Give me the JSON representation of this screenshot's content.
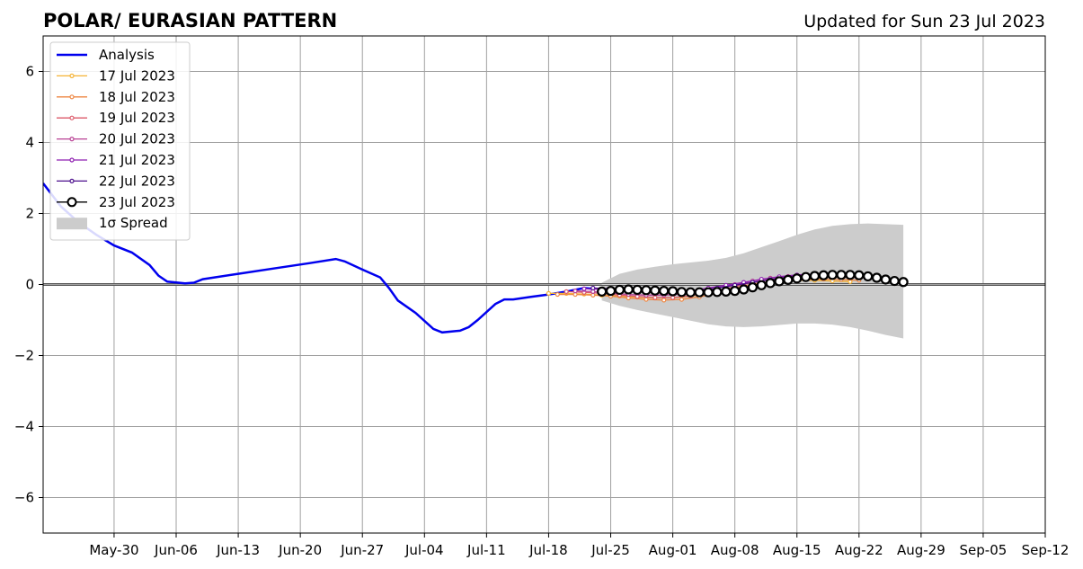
{
  "title": "POLAR/ EURASIAN  PATTERN",
  "subtitle": "Updated for Sun 23 Jul 2023",
  "chart_data": {
    "type": "line",
    "title": "POLAR/ EURASIAN  PATTERN",
    "subtitle": "Updated for Sun 23 Jul 2023",
    "xlabel": "",
    "ylabel": "",
    "xlim": [
      "2023-05-22",
      "2023-09-12"
    ],
    "ylim": [
      -7,
      7
    ],
    "x_ticks": [
      "May-30",
      "Jun-06",
      "Jun-13",
      "Jun-20",
      "Jun-27",
      "Jul-04",
      "Jul-11",
      "Jul-18",
      "Jul-25",
      "Aug-01",
      "Aug-08",
      "Aug-15",
      "Aug-22",
      "Aug-29",
      "Sep-05",
      "Sep-12"
    ],
    "x_tick_dates": [
      "2023-05-30",
      "2023-06-06",
      "2023-06-13",
      "2023-06-20",
      "2023-06-27",
      "2023-07-04",
      "2023-07-11",
      "2023-07-18",
      "2023-07-25",
      "2023-08-01",
      "2023-08-08",
      "2023-08-15",
      "2023-08-22",
      "2023-08-29",
      "2023-09-05",
      "2023-09-12"
    ],
    "y_ticks": [
      -6,
      -4,
      -2,
      0,
      2,
      4,
      6
    ],
    "y_tick_labels": [
      "−6",
      "−4",
      "−2",
      "0",
      "2",
      "4",
      "6"
    ],
    "grid": true,
    "legend_position": "top-left",
    "series": [
      {
        "name": "Analysis",
        "color": "#0000ee",
        "style": "line",
        "points": [
          [
            "2023-05-22",
            2.85
          ],
          [
            "2023-05-24",
            2.2
          ],
          [
            "2023-05-26",
            1.75
          ],
          [
            "2023-05-28",
            1.4
          ],
          [
            "2023-05-30",
            1.1
          ],
          [
            "2023-06-01",
            0.9
          ],
          [
            "2023-06-03",
            0.55
          ],
          [
            "2023-06-04",
            0.25
          ],
          [
            "2023-06-05",
            0.08
          ],
          [
            "2023-06-07",
            0.03
          ],
          [
            "2023-06-08",
            0.05
          ],
          [
            "2023-06-09",
            0.15
          ],
          [
            "2023-06-13",
            0.3
          ],
          [
            "2023-06-17",
            0.45
          ],
          [
            "2023-06-21",
            0.6
          ],
          [
            "2023-06-24",
            0.72
          ],
          [
            "2023-06-25",
            0.65
          ],
          [
            "2023-06-27",
            0.42
          ],
          [
            "2023-06-29",
            0.2
          ],
          [
            "2023-06-30",
            -0.1
          ],
          [
            "2023-07-01",
            -0.45
          ],
          [
            "2023-07-03",
            -0.8
          ],
          [
            "2023-07-05",
            -1.25
          ],
          [
            "2023-07-06",
            -1.35
          ],
          [
            "2023-07-08",
            -1.3
          ],
          [
            "2023-07-09",
            -1.2
          ],
          [
            "2023-07-10",
            -1.0
          ],
          [
            "2023-07-12",
            -0.55
          ],
          [
            "2023-07-13",
            -0.42
          ],
          [
            "2023-07-14",
            -0.42
          ],
          [
            "2023-07-16",
            -0.35
          ],
          [
            "2023-07-18",
            -0.28
          ],
          [
            "2023-07-20",
            -0.2
          ],
          [
            "2023-07-22",
            -0.1
          ],
          [
            "2023-07-23",
            -0.12
          ]
        ]
      },
      {
        "name": "17 Jul 2023",
        "color": "#f5b335",
        "style": "marker-line",
        "points": [
          [
            "2023-07-18",
            -0.25
          ],
          [
            "2023-07-20",
            -0.25
          ],
          [
            "2023-07-22",
            -0.27
          ],
          [
            "2023-07-24",
            -0.3
          ],
          [
            "2023-07-26",
            -0.33
          ],
          [
            "2023-07-28",
            -0.36
          ],
          [
            "2023-07-30",
            -0.38
          ],
          [
            "2023-08-01",
            -0.38
          ],
          [
            "2023-08-03",
            -0.33
          ],
          [
            "2023-08-05",
            -0.25
          ],
          [
            "2023-08-07",
            -0.15
          ],
          [
            "2023-08-09",
            -0.05
          ],
          [
            "2023-08-11",
            0.05
          ],
          [
            "2023-08-13",
            0.1
          ],
          [
            "2023-08-15",
            0.12
          ],
          [
            "2023-08-17",
            0.12
          ],
          [
            "2023-08-19",
            0.1
          ],
          [
            "2023-08-21",
            0.08
          ]
        ]
      },
      {
        "name": "18 Jul 2023",
        "color": "#ee8743",
        "style": "marker-line",
        "points": [
          [
            "2023-07-19",
            -0.28
          ],
          [
            "2023-07-21",
            -0.28
          ],
          [
            "2023-07-23",
            -0.3
          ],
          [
            "2023-07-25",
            -0.33
          ],
          [
            "2023-07-27",
            -0.38
          ],
          [
            "2023-07-29",
            -0.42
          ],
          [
            "2023-07-31",
            -0.44
          ],
          [
            "2023-08-02",
            -0.42
          ],
          [
            "2023-08-04",
            -0.35
          ],
          [
            "2023-08-06",
            -0.25
          ],
          [
            "2023-08-08",
            -0.12
          ],
          [
            "2023-08-10",
            0.0
          ],
          [
            "2023-08-12",
            0.08
          ],
          [
            "2023-08-14",
            0.12
          ],
          [
            "2023-08-16",
            0.14
          ],
          [
            "2023-08-18",
            0.15
          ],
          [
            "2023-08-20",
            0.14
          ],
          [
            "2023-08-22",
            0.12
          ]
        ]
      },
      {
        "name": "19 Jul 2023",
        "color": "#dc5a6a",
        "style": "marker-line",
        "points": [
          [
            "2023-07-20",
            -0.2
          ],
          [
            "2023-07-22",
            -0.22
          ],
          [
            "2023-07-24",
            -0.25
          ],
          [
            "2023-07-26",
            -0.3
          ],
          [
            "2023-07-28",
            -0.34
          ],
          [
            "2023-07-30",
            -0.37
          ],
          [
            "2023-08-01",
            -0.37
          ],
          [
            "2023-08-03",
            -0.32
          ],
          [
            "2023-08-05",
            -0.23
          ],
          [
            "2023-08-07",
            -0.12
          ],
          [
            "2023-08-09",
            0.0
          ],
          [
            "2023-08-11",
            0.1
          ],
          [
            "2023-08-13",
            0.17
          ],
          [
            "2023-08-15",
            0.2
          ],
          [
            "2023-08-17",
            0.22
          ],
          [
            "2023-08-19",
            0.22
          ],
          [
            "2023-08-21",
            0.2
          ],
          [
            "2023-08-23",
            0.18
          ]
        ]
      },
      {
        "name": "20 Jul 2023",
        "color": "#b84094",
        "style": "marker-line",
        "points": [
          [
            "2023-07-21",
            -0.18
          ],
          [
            "2023-07-23",
            -0.2
          ],
          [
            "2023-07-25",
            -0.24
          ],
          [
            "2023-07-27",
            -0.28
          ],
          [
            "2023-07-29",
            -0.3
          ],
          [
            "2023-07-31",
            -0.3
          ],
          [
            "2023-08-02",
            -0.27
          ],
          [
            "2023-08-04",
            -0.2
          ],
          [
            "2023-08-06",
            -0.1
          ],
          [
            "2023-08-08",
            0.0
          ],
          [
            "2023-08-10",
            0.1
          ],
          [
            "2023-08-12",
            0.18
          ],
          [
            "2023-08-14",
            0.23
          ],
          [
            "2023-08-16",
            0.26
          ],
          [
            "2023-08-18",
            0.27
          ],
          [
            "2023-08-20",
            0.26
          ],
          [
            "2023-08-22",
            0.24
          ],
          [
            "2023-08-24",
            0.2
          ]
        ]
      },
      {
        "name": "21 Jul 2023",
        "color": "#8e1fb0",
        "style": "marker-line",
        "points": [
          [
            "2023-07-22",
            -0.12
          ],
          [
            "2023-07-24",
            -0.14
          ],
          [
            "2023-07-26",
            -0.17
          ],
          [
            "2023-07-28",
            -0.2
          ],
          [
            "2023-07-30",
            -0.22
          ],
          [
            "2023-08-01",
            -0.22
          ],
          [
            "2023-08-03",
            -0.18
          ],
          [
            "2023-08-05",
            -0.1
          ],
          [
            "2023-08-07",
            -0.02
          ],
          [
            "2023-08-09",
            0.06
          ],
          [
            "2023-08-11",
            0.15
          ],
          [
            "2023-08-13",
            0.22
          ],
          [
            "2023-08-15",
            0.27
          ],
          [
            "2023-08-17",
            0.29
          ],
          [
            "2023-08-19",
            0.29
          ],
          [
            "2023-08-21",
            0.27
          ],
          [
            "2023-08-23",
            0.24
          ],
          [
            "2023-08-25",
            0.2
          ]
        ]
      },
      {
        "name": "22 Jul 2023",
        "color": "#4b0e8c",
        "style": "marker-line",
        "points": [
          [
            "2023-07-23",
            -0.1
          ],
          [
            "2023-07-25",
            -0.12
          ],
          [
            "2023-07-27",
            -0.15
          ],
          [
            "2023-07-29",
            -0.18
          ],
          [
            "2023-07-31",
            -0.2
          ],
          [
            "2023-08-02",
            -0.2
          ],
          [
            "2023-08-04",
            -0.17
          ],
          [
            "2023-08-06",
            -0.1
          ],
          [
            "2023-08-08",
            -0.02
          ],
          [
            "2023-08-10",
            0.06
          ],
          [
            "2023-08-12",
            0.14
          ],
          [
            "2023-08-14",
            0.21
          ],
          [
            "2023-08-16",
            0.25
          ],
          [
            "2023-08-18",
            0.27
          ],
          [
            "2023-08-20",
            0.27
          ],
          [
            "2023-08-22",
            0.25
          ],
          [
            "2023-08-24",
            0.2
          ],
          [
            "2023-08-26",
            0.12
          ]
        ]
      },
      {
        "name": "23 Jul 2023",
        "color": "#000000",
        "style": "open-circles",
        "points": [
          [
            "2023-07-24",
            -0.2
          ],
          [
            "2023-07-25",
            -0.18
          ],
          [
            "2023-07-26",
            -0.15
          ],
          [
            "2023-07-27",
            -0.14
          ],
          [
            "2023-07-28",
            -0.15
          ],
          [
            "2023-07-29",
            -0.16
          ],
          [
            "2023-07-30",
            -0.17
          ],
          [
            "2023-07-31",
            -0.18
          ],
          [
            "2023-08-01",
            -0.19
          ],
          [
            "2023-08-02",
            -0.21
          ],
          [
            "2023-08-03",
            -0.22
          ],
          [
            "2023-08-04",
            -0.22
          ],
          [
            "2023-08-05",
            -0.22
          ],
          [
            "2023-08-06",
            -0.21
          ],
          [
            "2023-08-07",
            -0.2
          ],
          [
            "2023-08-08",
            -0.18
          ],
          [
            "2023-08-09",
            -0.14
          ],
          [
            "2023-08-10",
            -0.08
          ],
          [
            "2023-08-11",
            -0.02
          ],
          [
            "2023-08-12",
            0.04
          ],
          [
            "2023-08-13",
            0.09
          ],
          [
            "2023-08-14",
            0.13
          ],
          [
            "2023-08-15",
            0.17
          ],
          [
            "2023-08-16",
            0.21
          ],
          [
            "2023-08-17",
            0.24
          ],
          [
            "2023-08-18",
            0.26
          ],
          [
            "2023-08-19",
            0.27
          ],
          [
            "2023-08-20",
            0.27
          ],
          [
            "2023-08-21",
            0.27
          ],
          [
            "2023-08-22",
            0.26
          ],
          [
            "2023-08-23",
            0.23
          ],
          [
            "2023-08-24",
            0.19
          ],
          [
            "2023-08-25",
            0.14
          ],
          [
            "2023-08-26",
            0.1
          ],
          [
            "2023-08-27",
            0.07
          ]
        ]
      }
    ],
    "spread": {
      "name": "1σ Spread",
      "color": "#cccccc",
      "points": [
        [
          "2023-07-24",
          -0.45,
          0.05
        ],
        [
          "2023-07-26",
          -0.6,
          0.3
        ],
        [
          "2023-07-28",
          -0.72,
          0.42
        ],
        [
          "2023-07-30",
          -0.82,
          0.5
        ],
        [
          "2023-08-01",
          -0.92,
          0.57
        ],
        [
          "2023-08-03",
          -1.02,
          0.62
        ],
        [
          "2023-08-05",
          -1.12,
          0.67
        ],
        [
          "2023-08-07",
          -1.18,
          0.75
        ],
        [
          "2023-08-09",
          -1.2,
          0.88
        ],
        [
          "2023-08-11",
          -1.18,
          1.05
        ],
        [
          "2023-08-13",
          -1.14,
          1.22
        ],
        [
          "2023-08-15",
          -1.1,
          1.4
        ],
        [
          "2023-08-17",
          -1.1,
          1.55
        ],
        [
          "2023-08-19",
          -1.13,
          1.65
        ],
        [
          "2023-08-21",
          -1.2,
          1.7
        ],
        [
          "2023-08-23",
          -1.3,
          1.72
        ],
        [
          "2023-08-25",
          -1.42,
          1.7
        ],
        [
          "2023-08-27",
          -1.52,
          1.68
        ]
      ]
    }
  }
}
